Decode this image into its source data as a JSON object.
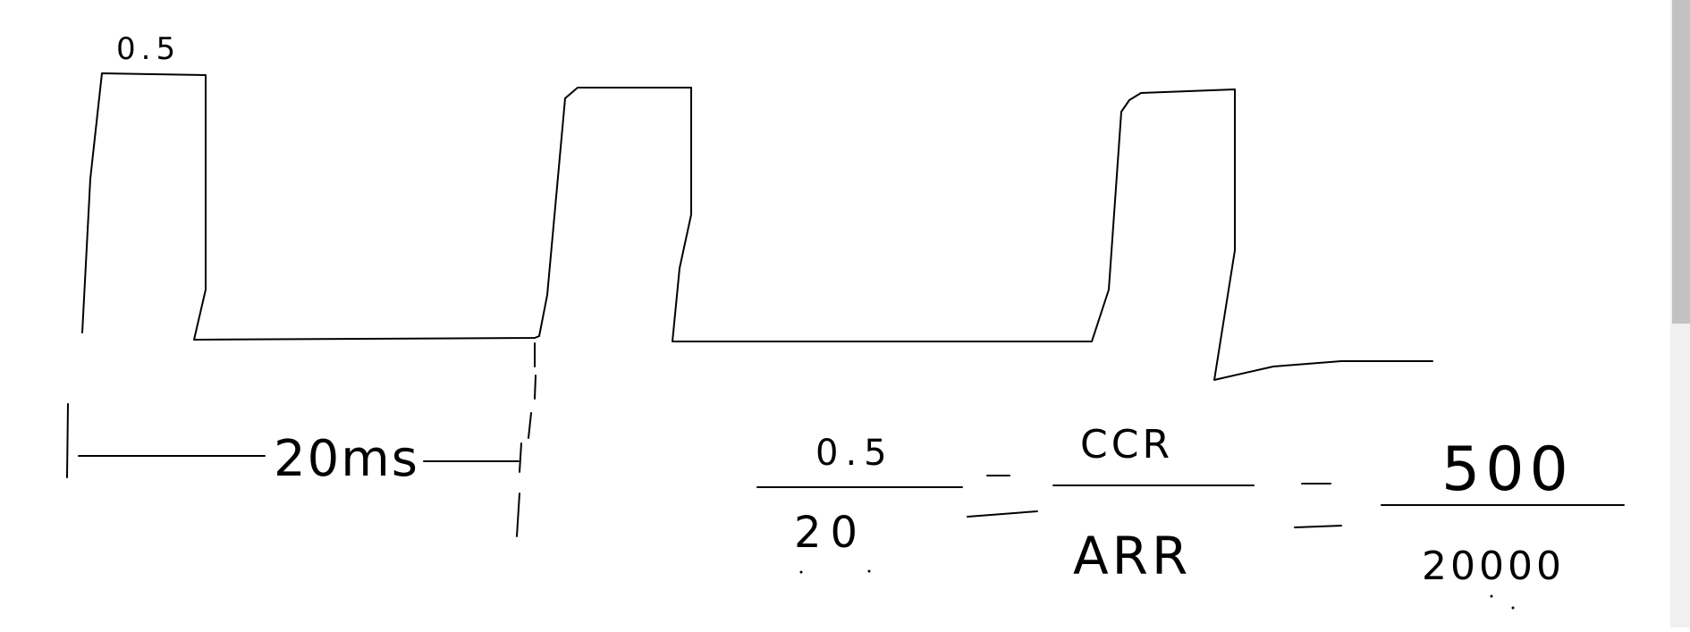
{
  "sketch": {
    "amplitude_label": "0.5",
    "period_label": "20ms",
    "equation": {
      "frac1_num": "0.5",
      "frac1_den": "20",
      "frac2_num": "CCR",
      "frac2_den": "ARR",
      "frac3_num": "500",
      "frac3_den": "20000"
    }
  },
  "ui": {
    "scrollbar": "vertical-scrollbar"
  }
}
